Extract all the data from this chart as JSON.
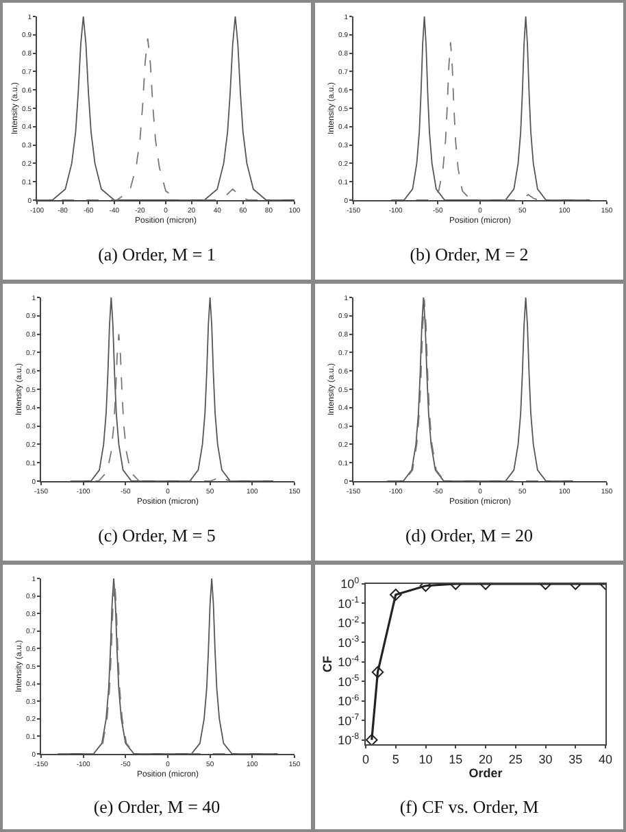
{
  "chart_data": [
    {
      "type": "line",
      "title": "(a) Order, M = 1",
      "xlabel": "Position (micron)",
      "ylabel": "Intensity (a.u.)",
      "xlim": [
        -100,
        100
      ],
      "xticks": [
        -100,
        -80,
        -60,
        -40,
        -20,
        0,
        20,
        40,
        60,
        80,
        100
      ],
      "ylim": [
        0,
        1
      ],
      "yticks": [
        0,
        0.1,
        0.2,
        0.3,
        0.4,
        0.5,
        0.6,
        0.7,
        0.8,
        0.9,
        1
      ],
      "series": [
        {
          "color": "#555555",
          "line_style": "solid",
          "x": [
            -100,
            -88,
            -78,
            -73,
            -70,
            -68,
            -66,
            -64,
            -62,
            -60,
            -58,
            -55,
            -50,
            -40,
            30,
            40,
            45,
            48,
            50,
            52,
            54,
            56,
            58,
            60,
            63,
            68,
            78,
            100
          ],
          "values": [
            0,
            0,
            0.06,
            0.2,
            0.37,
            0.58,
            0.85,
            1,
            0.85,
            0.58,
            0.37,
            0.2,
            0.06,
            0,
            0,
            0.06,
            0.2,
            0.37,
            0.58,
            0.85,
            1,
            0.85,
            0.58,
            0.37,
            0.2,
            0.06,
            0,
            0
          ]
        },
        {
          "color": "#777777",
          "line_style": "dashed",
          "x": [
            -100,
            -38,
            -28,
            -23,
            -20,
            -18,
            -16,
            -14,
            -12,
            -10,
            -8,
            -5,
            0,
            10,
            40,
            46,
            52,
            58,
            64,
            100
          ],
          "values": [
            0,
            0,
            0.05,
            0.18,
            0.33,
            0.51,
            0.75,
            0.88,
            0.75,
            0.51,
            0.33,
            0.18,
            0.05,
            0,
            0,
            0.02,
            0.06,
            0.02,
            0,
            0
          ]
        }
      ]
    },
    {
      "type": "line",
      "title": "(b) Order, M = 2",
      "xlabel": "Position (micron)",
      "ylabel": "Intensity (a.u.)",
      "xlim": [
        -150,
        150
      ],
      "xticks": [
        -150,
        -100,
        -50,
        0,
        50,
        100,
        150
      ],
      "ylim": [
        0,
        1
      ],
      "yticks": [
        0,
        0.1,
        0.2,
        0.3,
        0.4,
        0.5,
        0.6,
        0.7,
        0.8,
        0.9,
        1
      ],
      "series": [
        {
          "color": "#555555",
          "line_style": "solid",
          "x": [
            -105,
            -90,
            -80,
            -75,
            -72,
            -70,
            -68,
            -66,
            -64,
            -62,
            -60,
            -57,
            -52,
            -42,
            30,
            40,
            45,
            48,
            50,
            52,
            54,
            56,
            58,
            60,
            63,
            68,
            78,
            130
          ],
          "values": [
            0,
            0,
            0.06,
            0.2,
            0.37,
            0.58,
            0.85,
            1,
            0.85,
            0.58,
            0.37,
            0.2,
            0.06,
            0,
            0,
            0.06,
            0.2,
            0.37,
            0.58,
            0.85,
            1,
            0.85,
            0.58,
            0.37,
            0.2,
            0.06,
            0,
            0
          ]
        },
        {
          "color": "#777777",
          "line_style": "dashed",
          "x": [
            -105,
            -59,
            -49,
            -44,
            -41,
            -39,
            -37,
            -35,
            -33,
            -31,
            -29,
            -26,
            -21,
            -11,
            45,
            51,
            57,
            63,
            69,
            130
          ],
          "values": [
            0,
            0,
            0.05,
            0.17,
            0.32,
            0.5,
            0.73,
            0.86,
            0.73,
            0.5,
            0.32,
            0.17,
            0.05,
            0,
            0,
            0.01,
            0.03,
            0.01,
            0,
            0
          ]
        }
      ]
    },
    {
      "type": "line",
      "title": "(c) Order, M = 5",
      "xlabel": "Position (micron)",
      "ylabel": "Intensity (a.u.)",
      "xlim": [
        -150,
        150
      ],
      "xticks": [
        -150,
        -100,
        -50,
        0,
        50,
        100,
        150
      ],
      "ylim": [
        0,
        1
      ],
      "yticks": [
        0,
        0.1,
        0.2,
        0.3,
        0.4,
        0.5,
        0.6,
        0.7,
        0.8,
        0.9,
        1
      ],
      "series": [
        {
          "color": "#555555",
          "line_style": "solid",
          "x": [
            -115,
            -91,
            -81,
            -76,
            -73,
            -71,
            -69,
            -67,
            -65,
            -63,
            -61,
            -58,
            -53,
            -43,
            26,
            36,
            41,
            44,
            46,
            48,
            50,
            52,
            54,
            56,
            59,
            64,
            74,
            125
          ],
          "values": [
            0,
            0,
            0.06,
            0.2,
            0.37,
            0.58,
            0.85,
            1,
            0.85,
            0.58,
            0.37,
            0.2,
            0.06,
            0,
            0,
            0.06,
            0.2,
            0.37,
            0.58,
            0.85,
            1,
            0.85,
            0.58,
            0.37,
            0.2,
            0.06,
            0,
            0
          ]
        },
        {
          "color": "#777777",
          "line_style": "dashed",
          "x": [
            -115,
            -82,
            -72,
            -67,
            -64,
            -62,
            -60,
            -58,
            -56,
            -54,
            -52,
            -49,
            -44,
            -34,
            50,
            56,
            62,
            68,
            74,
            125
          ],
          "values": [
            0,
            0,
            0.05,
            0.16,
            0.3,
            0.46,
            0.68,
            0.8,
            0.68,
            0.46,
            0.3,
            0.16,
            0.05,
            0,
            0,
            0.01,
            0.03,
            0.01,
            0,
            0
          ]
        }
      ]
    },
    {
      "type": "line",
      "title": "(d) Order, M = 20",
      "xlabel": "Position (micron)",
      "ylabel": "Intensity (a.u.)",
      "xlim": [
        -150,
        150
      ],
      "xticks": [
        -150,
        -100,
        -50,
        0,
        50,
        100,
        150
      ],
      "ylim": [
        0,
        1
      ],
      "yticks": [
        0,
        0.1,
        0.2,
        0.3,
        0.4,
        0.5,
        0.6,
        0.7,
        0.8,
        0.9,
        1
      ],
      "series": [
        {
          "color": "#555555",
          "line_style": "solid",
          "x": [
            -110,
            -91,
            -81,
            -76,
            -73,
            -71,
            -69,
            -67,
            -65,
            -63,
            -61,
            -58,
            -53,
            -43,
            30,
            40,
            45,
            48,
            50,
            52,
            54,
            56,
            58,
            60,
            63,
            68,
            78,
            110
          ],
          "values": [
            0,
            0,
            0.06,
            0.2,
            0.37,
            0.58,
            0.85,
            1,
            0.85,
            0.58,
            0.37,
            0.2,
            0.06,
            0,
            0,
            0.06,
            0.2,
            0.37,
            0.58,
            0.85,
            1,
            0.85,
            0.58,
            0.37,
            0.2,
            0.06,
            0,
            0
          ]
        },
        {
          "color": "#777777",
          "line_style": "dashed",
          "x": [
            -110,
            -90,
            -80,
            -75,
            -72,
            -70,
            -68,
            -66,
            -64,
            -62,
            -60,
            -57,
            -52,
            -42,
            110
          ],
          "values": [
            0,
            0,
            0.06,
            0.2,
            0.37,
            0.57,
            0.84,
            0.99,
            0.84,
            0.57,
            0.37,
            0.2,
            0.06,
            0,
            0
          ]
        }
      ]
    },
    {
      "type": "line",
      "title": "(e) Order, M = 40",
      "xlabel": "Position (micron)",
      "ylabel": "Intensity (a.u.)",
      "xlim": [
        -150,
        150
      ],
      "xticks": [
        -150,
        -100,
        -50,
        0,
        50,
        100,
        150
      ],
      "ylim": [
        0,
        1
      ],
      "yticks": [
        0,
        0.1,
        0.2,
        0.3,
        0.4,
        0.5,
        0.6,
        0.7,
        0.8,
        0.9,
        1
      ],
      "series": [
        {
          "color": "#555555",
          "line_style": "solid",
          "x": [
            -130,
            -88,
            -78,
            -73,
            -70,
            -68,
            -66,
            -64,
            -62,
            -60,
            -58,
            -55,
            -50,
            -40,
            28,
            38,
            43,
            46,
            48,
            50,
            52,
            54,
            56,
            58,
            61,
            66,
            76,
            130
          ],
          "values": [
            0,
            0,
            0.06,
            0.2,
            0.37,
            0.58,
            0.85,
            1,
            0.85,
            0.58,
            0.37,
            0.2,
            0.06,
            0,
            0,
            0.06,
            0.2,
            0.37,
            0.58,
            0.85,
            1,
            0.85,
            0.58,
            0.37,
            0.2,
            0.06,
            0,
            0
          ]
        },
        {
          "color": "#777777",
          "line_style": "dashed",
          "x": [
            -130,
            -87,
            -77,
            -72,
            -69,
            -67,
            -65,
            -63,
            -61,
            -59,
            -57,
            -54,
            -49,
            -39,
            130
          ],
          "values": [
            0,
            0,
            0.06,
            0.2,
            0.37,
            0.57,
            0.84,
            0.99,
            0.84,
            0.57,
            0.37,
            0.2,
            0.06,
            0,
            0
          ]
        }
      ]
    },
    {
      "type": "line",
      "title": "(f) CF vs. Order, M",
      "xlabel": "Order",
      "ylabel": "CF",
      "log": "y",
      "marker": "diamond",
      "xlim": [
        0,
        40
      ],
      "xticks": [
        0,
        5,
        10,
        15,
        20,
        25,
        30,
        35,
        40
      ],
      "ylim": [
        6e-09,
        1
      ],
      "yticks": [
        {
          "value": 1e-08,
          "label": "10$^{-8}$"
        },
        {
          "value": 1e-07,
          "label": "10$^{-7}$"
        },
        {
          "value": 1e-06,
          "label": "10$^{-6}$"
        },
        {
          "value": 1e-05,
          "label": "10$^{-5}$"
        },
        {
          "value": 0.0001,
          "label": "10$^{-4}$"
        },
        {
          "value": 0.001,
          "label": "10$^{-3}$"
        },
        {
          "value": 0.01,
          "label": "10$^{-2}$"
        },
        {
          "value": 0.1,
          "label": "10$^{-1}$"
        },
        {
          "value": 1,
          "label": "10$^{0}$"
        }
      ],
      "series": [
        {
          "color": "#222222",
          "line_style": "solid",
          "x": [
            1,
            2,
            5,
            10,
            15,
            20,
            30,
            35,
            40
          ],
          "values": [
            1e-08,
            3e-05,
            0.28,
            0.8,
            1,
            1,
            1,
            1,
            1
          ]
        }
      ]
    }
  ]
}
